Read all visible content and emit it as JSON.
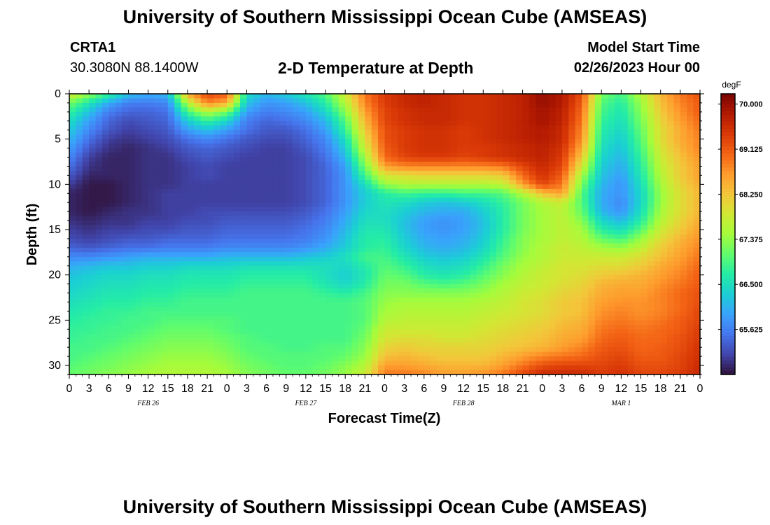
{
  "header": {
    "title": "University of Southern Mississippi Ocean Cube (AMSEAS)",
    "station": "CRTA1",
    "coords": "30.3080N  88.1400W",
    "subtitle": "2-D Temperature at Depth",
    "model_start_label": "Model Start Time",
    "model_start_value": "02/26/2023 Hour 00"
  },
  "footer": {
    "title": "University of Southern Mississippi Ocean Cube (AMSEAS)"
  },
  "chart_data": {
    "type": "heatmap",
    "title": "2-D Temperature at Depth",
    "xlabel": "Forecast Time(Z)",
    "ylabel": "Depth (ft)",
    "units": "degF",
    "x_start_hour": 0,
    "x_end_hour": 96,
    "x_tick_step_hours": 3,
    "x_tick_labels": [
      "0",
      "3",
      "6",
      "9",
      "12",
      "15",
      "18",
      "21",
      "0",
      "3",
      "6",
      "9",
      "12",
      "15",
      "18",
      "21",
      "0",
      "3",
      "6",
      "9",
      "12",
      "15",
      "18",
      "21",
      "0",
      "3",
      "6",
      "9",
      "12",
      "15",
      "18",
      "21",
      "0"
    ],
    "date_labels": [
      {
        "label": "FEB 26",
        "hour": 12
      },
      {
        "label": "FEB 27",
        "hour": 36
      },
      {
        "label": "FEB 28",
        "hour": 60
      },
      {
        "label": "MAR 1",
        "hour": 84
      }
    ],
    "ylim": [
      0,
      31
    ],
    "y_ticks": [
      0,
      5,
      10,
      15,
      20,
      25,
      30
    ],
    "colorbar_ticks": [
      "70.000",
      "69.125",
      "68.250",
      "67.375",
      "66.500",
      "65.625"
    ],
    "colorbar_range": [
      64.75,
      70.2
    ],
    "colorscale": [
      "#30123b",
      "#4145ab",
      "#4675ed",
      "#39a2fc",
      "#1bcfd4",
      "#24eca6",
      "#61fc6c",
      "#a4fc3b",
      "#d1e834",
      "#f3c63a",
      "#fe9b2d",
      "#f36315",
      "#d93806",
      "#b11901",
      "#7a0403"
    ],
    "depth_levels": [
      0,
      1,
      2,
      3,
      4,
      5,
      6,
      7,
      8,
      9,
      10,
      11,
      12,
      13,
      14,
      15,
      16,
      17,
      18,
      19,
      20,
      21,
      22,
      23,
      24,
      25,
      26,
      27,
      28,
      29,
      30,
      31
    ],
    "time_hours": [
      0,
      3,
      6,
      9,
      12,
      15,
      18,
      21,
      24,
      27,
      30,
      33,
      36,
      39,
      42,
      45,
      48,
      51,
      54,
      57,
      60,
      63,
      66,
      69,
      72,
      75,
      78,
      81,
      84,
      87,
      90,
      93,
      96
    ],
    "temperature_degF": [
      [
        67.9,
        67.4,
        66.8,
        66.2,
        66.0,
        66.1,
        68.5,
        69.3,
        69.1,
        66.5,
        66.1,
        66.3,
        66.6,
        67.0,
        67.8,
        68.9,
        69.4,
        69.6,
        69.7,
        69.6,
        69.5,
        69.5,
        69.6,
        69.7,
        70.0,
        69.8,
        69.2,
        67.2,
        66.9,
        67.6,
        68.4,
        68.9,
        69.2
      ],
      [
        67.2,
        66.6,
        66.0,
        65.6,
        65.6,
        65.7,
        67.6,
        68.8,
        68.5,
        66.2,
        65.8,
        65.9,
        66.2,
        66.7,
        67.6,
        68.8,
        69.4,
        69.6,
        69.7,
        69.6,
        69.5,
        69.5,
        69.6,
        69.7,
        70.0,
        69.8,
        69.1,
        67.0,
        66.7,
        67.4,
        68.3,
        68.8,
        69.1
      ],
      [
        66.8,
        66.2,
        65.6,
        65.4,
        65.4,
        65.5,
        66.9,
        67.6,
        67.2,
        65.9,
        65.6,
        65.7,
        65.9,
        66.4,
        67.3,
        68.6,
        69.3,
        69.5,
        69.6,
        69.6,
        69.5,
        69.5,
        69.6,
        69.7,
        69.9,
        69.7,
        69.0,
        66.9,
        66.6,
        67.3,
        68.2,
        68.7,
        69.1
      ],
      [
        66.5,
        65.9,
        65.4,
        65.2,
        65.3,
        65.4,
        66.3,
        66.8,
        66.4,
        65.6,
        65.4,
        65.5,
        65.7,
        66.1,
        67.0,
        68.4,
        69.3,
        69.5,
        69.6,
        69.6,
        69.5,
        69.5,
        69.6,
        69.7,
        69.9,
        69.7,
        68.9,
        66.8,
        66.5,
        67.2,
        68.1,
        68.6,
        69.0
      ],
      [
        66.3,
        65.7,
        65.3,
        65.1,
        65.2,
        65.3,
        65.9,
        66.2,
        65.9,
        65.5,
        65.3,
        65.3,
        65.5,
        65.9,
        66.8,
        68.2,
        69.2,
        69.4,
        69.5,
        69.5,
        69.4,
        69.5,
        69.6,
        69.7,
        69.8,
        69.6,
        68.8,
        66.7,
        66.4,
        67.1,
        68.0,
        68.5,
        68.9
      ],
      [
        66.1,
        65.5,
        65.1,
        65.0,
        65.1,
        65.2,
        65.5,
        65.7,
        65.5,
        65.3,
        65.2,
        65.2,
        65.4,
        65.7,
        66.5,
        68.0,
        69.2,
        69.4,
        69.5,
        69.5,
        69.4,
        69.5,
        69.6,
        69.7,
        69.8,
        69.6,
        68.7,
        66.6,
        66.3,
        67.0,
        68.0,
        68.5,
        68.8
      ],
      [
        65.9,
        65.3,
        65.0,
        64.9,
        65.0,
        65.1,
        65.3,
        65.4,
        65.3,
        65.2,
        65.1,
        65.1,
        65.3,
        65.6,
        66.3,
        67.8,
        69.1,
        69.4,
        69.5,
        69.5,
        69.4,
        69.4,
        69.5,
        69.6,
        69.7,
        69.5,
        68.5,
        66.5,
        66.2,
        66.9,
        67.9,
        68.4,
        68.8
      ],
      [
        65.7,
        65.1,
        64.9,
        64.9,
        65.0,
        65.0,
        65.2,
        65.3,
        65.2,
        65.1,
        65.1,
        65.1,
        65.2,
        65.5,
        66.1,
        67.5,
        69.0,
        69.3,
        69.4,
        69.4,
        69.3,
        69.4,
        69.5,
        69.6,
        69.7,
        69.4,
        68.2,
        66.4,
        66.1,
        66.8,
        67.8,
        68.3,
        68.7
      ],
      [
        65.5,
        65.0,
        64.9,
        64.9,
        65.0,
        65.0,
        65.1,
        65.2,
        65.1,
        65.1,
        65.1,
        65.1,
        65.2,
        65.4,
        65.9,
        67.2,
        68.6,
        68.8,
        68.8,
        68.8,
        68.8,
        68.8,
        68.9,
        69.3,
        69.6,
        69.3,
        67.9,
        66.3,
        66.0,
        66.7,
        67.7,
        68.2,
        68.6
      ],
      [
        65.3,
        64.9,
        64.9,
        64.9,
        65.0,
        65.0,
        65.1,
        65.2,
        65.1,
        65.1,
        65.1,
        65.1,
        65.2,
        65.4,
        65.8,
        66.9,
        67.9,
        68.0,
        68.1,
        68.1,
        68.1,
        68.1,
        68.2,
        69.0,
        69.5,
        69.1,
        67.5,
        66.2,
        65.9,
        66.6,
        67.6,
        68.2,
        68.6
      ],
      [
        65.1,
        64.8,
        64.8,
        64.9,
        65.0,
        65.0,
        65.1,
        65.1,
        65.1,
        65.1,
        65.1,
        65.1,
        65.2,
        65.4,
        65.8,
        66.5,
        67.4,
        67.6,
        67.6,
        67.6,
        67.6,
        67.6,
        67.7,
        68.6,
        69.3,
        68.9,
        67.2,
        66.1,
        65.8,
        66.5,
        67.5,
        68.1,
        68.5
      ],
      [
        64.9,
        64.8,
        64.8,
        64.9,
        65.0,
        65.1,
        65.1,
        65.1,
        65.1,
        65.1,
        65.1,
        65.1,
        65.2,
        65.4,
        65.8,
        66.3,
        66.7,
        66.9,
        66.8,
        66.8,
        66.9,
        66.9,
        67.0,
        67.6,
        68.3,
        68.6,
        67.0,
        66.0,
        65.8,
        66.4,
        67.4,
        68.0,
        68.4
      ],
      [
        64.9,
        64.8,
        64.8,
        64.9,
        65.0,
        65.1,
        65.1,
        65.1,
        65.1,
        65.1,
        65.1,
        65.1,
        65.2,
        65.4,
        65.8,
        66.3,
        66.6,
        66.5,
        66.3,
        66.2,
        66.3,
        66.5,
        66.8,
        67.2,
        67.6,
        67.8,
        67.0,
        66.0,
        65.7,
        66.4,
        67.4,
        68.0,
        68.4
      ],
      [
        64.9,
        64.8,
        64.9,
        65.0,
        65.0,
        65.1,
        65.1,
        65.2,
        65.2,
        65.2,
        65.2,
        65.2,
        65.3,
        65.5,
        65.9,
        66.4,
        66.5,
        66.3,
        66.1,
        66.0,
        66.0,
        66.3,
        66.7,
        67.2,
        67.5,
        67.7,
        67.1,
        66.1,
        65.8,
        66.5,
        67.5,
        68.0,
        68.4
      ],
      [
        65.0,
        64.9,
        65.0,
        65.0,
        65.1,
        65.1,
        65.2,
        65.2,
        65.3,
        65.3,
        65.3,
        65.3,
        65.4,
        65.6,
        66.0,
        66.5,
        66.5,
        66.2,
        65.9,
        65.8,
        65.9,
        66.2,
        66.7,
        67.2,
        67.5,
        67.7,
        67.3,
        66.4,
        66.1,
        66.7,
        67.6,
        68.1,
        68.5
      ],
      [
        65.1,
        65.0,
        65.1,
        65.1,
        65.2,
        65.2,
        65.3,
        65.3,
        65.4,
        65.4,
        65.4,
        65.4,
        65.5,
        65.7,
        66.1,
        66.6,
        66.6,
        66.2,
        65.9,
        65.8,
        65.9,
        66.2,
        66.7,
        67.2,
        67.5,
        67.7,
        67.5,
        66.7,
        66.5,
        67.0,
        67.8,
        68.2,
        68.6
      ],
      [
        65.2,
        65.1,
        65.2,
        65.3,
        65.3,
        65.4,
        65.4,
        65.4,
        65.5,
        65.5,
        65.5,
        65.5,
        65.6,
        65.8,
        66.2,
        66.7,
        66.7,
        66.3,
        66.0,
        65.9,
        66.0,
        66.3,
        66.8,
        67.3,
        67.5,
        67.7,
        67.6,
        67.1,
        66.9,
        67.4,
        68.0,
        68.4,
        68.7
      ],
      [
        65.4,
        65.3,
        65.4,
        65.5,
        65.5,
        65.6,
        65.6,
        65.6,
        65.7,
        65.7,
        65.7,
        65.7,
        65.8,
        66.0,
        66.3,
        66.7,
        66.8,
        66.4,
        66.1,
        66.0,
        66.1,
        66.4,
        66.9,
        67.3,
        67.6,
        67.8,
        67.7,
        67.5,
        67.4,
        67.7,
        68.2,
        68.5,
        68.8
      ],
      [
        65.7,
        65.7,
        65.8,
        65.9,
        66.0,
        66.0,
        66.0,
        66.0,
        66.1,
        66.1,
        66.1,
        66.1,
        66.2,
        66.3,
        66.5,
        66.9,
        66.9,
        66.6,
        66.3,
        66.2,
        66.3,
        66.6,
        67.0,
        67.4,
        67.6,
        67.8,
        67.8,
        67.8,
        67.8,
        68.0,
        68.3,
        68.6,
        68.9
      ],
      [
        66.0,
        66.1,
        66.2,
        66.2,
        66.3,
        66.3,
        66.4,
        66.4,
        66.4,
        66.5,
        66.5,
        66.5,
        66.5,
        66.5,
        66.4,
        66.7,
        67.0,
        66.8,
        66.5,
        66.4,
        66.5,
        66.8,
        67.2,
        67.5,
        67.7,
        67.9,
        67.9,
        68.0,
        68.0,
        68.2,
        68.5,
        68.7,
        69.0
      ],
      [
        66.2,
        66.3,
        66.4,
        66.4,
        66.5,
        66.5,
        66.6,
        66.6,
        66.6,
        66.7,
        66.7,
        66.7,
        66.7,
        66.5,
        66.3,
        66.6,
        67.1,
        67.0,
        66.7,
        66.6,
        66.7,
        67.0,
        67.3,
        67.6,
        67.8,
        67.9,
        68.0,
        68.2,
        68.3,
        68.4,
        68.6,
        68.8,
        69.1
      ],
      [
        66.3,
        66.4,
        66.5,
        66.5,
        66.6,
        66.6,
        66.7,
        66.7,
        66.7,
        66.8,
        66.8,
        66.8,
        66.8,
        66.6,
        66.4,
        66.7,
        67.2,
        67.2,
        67.0,
        66.9,
        67.0,
        67.2,
        67.5,
        67.7,
        67.8,
        68.0,
        68.1,
        68.4,
        68.5,
        68.5,
        68.7,
        68.9,
        69.1
      ],
      [
        66.4,
        66.5,
        66.6,
        66.6,
        66.7,
        66.7,
        66.8,
        66.8,
        66.8,
        66.9,
        66.9,
        66.9,
        66.9,
        66.8,
        66.7,
        66.9,
        67.3,
        67.3,
        67.3,
        67.3,
        67.3,
        67.4,
        67.6,
        67.8,
        67.9,
        68.1,
        68.2,
        68.5,
        68.6,
        68.6,
        68.8,
        69.0,
        69.2
      ],
      [
        66.5,
        66.6,
        66.7,
        66.7,
        66.8,
        66.8,
        66.9,
        66.9,
        66.9,
        66.9,
        66.9,
        66.9,
        66.9,
        66.9,
        66.9,
        67.0,
        67.4,
        67.5,
        67.5,
        67.5,
        67.5,
        67.6,
        67.7,
        67.9,
        68.0,
        68.2,
        68.3,
        68.6,
        68.7,
        68.7,
        68.8,
        69.0,
        69.2
      ],
      [
        66.6,
        66.7,
        66.8,
        66.8,
        66.9,
        66.9,
        66.9,
        66.9,
        66.9,
        66.9,
        66.9,
        66.9,
        66.9,
        66.9,
        66.9,
        67.0,
        67.5,
        67.6,
        67.6,
        67.6,
        67.6,
        67.7,
        67.8,
        67.9,
        68.0,
        68.2,
        68.3,
        68.7,
        68.8,
        68.7,
        68.8,
        69.0,
        69.3
      ],
      [
        66.7,
        66.8,
        66.8,
        66.9,
        66.9,
        67.0,
        67.0,
        67.0,
        67.0,
        66.9,
        66.9,
        66.9,
        66.9,
        66.9,
        66.9,
        67.0,
        67.6,
        67.7,
        67.7,
        67.7,
        67.7,
        67.8,
        67.9,
        68.0,
        68.1,
        68.3,
        68.4,
        68.8,
        68.9,
        68.8,
        68.9,
        69.1,
        69.3
      ],
      [
        66.8,
        66.8,
        66.9,
        66.9,
        67.0,
        67.1,
        67.1,
        67.1,
        67.0,
        66.9,
        66.9,
        66.9,
        66.9,
        66.9,
        66.9,
        67.1,
        67.8,
        67.8,
        67.8,
        67.8,
        67.8,
        67.9,
        68.0,
        68.1,
        68.2,
        68.4,
        68.5,
        68.9,
        69.0,
        68.9,
        69.0,
        69.1,
        69.4
      ],
      [
        66.8,
        66.9,
        66.9,
        67.0,
        67.1,
        67.2,
        67.2,
        67.2,
        67.1,
        67.0,
        66.9,
        66.9,
        66.9,
        66.9,
        66.9,
        67.2,
        67.9,
        68.0,
        68.0,
        67.9,
        67.9,
        68.0,
        68.1,
        68.2,
        68.3,
        68.5,
        68.6,
        69.0,
        69.1,
        69.0,
        69.0,
        69.2,
        69.4
      ],
      [
        66.9,
        66.9,
        67.0,
        67.1,
        67.2,
        67.3,
        67.3,
        67.3,
        67.2,
        67.0,
        67.0,
        66.9,
        66.9,
        67.0,
        67.0,
        67.3,
        68.1,
        68.2,
        68.1,
        68.1,
        68.1,
        68.1,
        68.2,
        68.3,
        68.4,
        68.6,
        68.8,
        69.1,
        69.2,
        69.0,
        69.1,
        69.2,
        69.5
      ],
      [
        66.9,
        67.0,
        67.1,
        67.2,
        67.3,
        67.4,
        67.4,
        67.4,
        67.3,
        67.1,
        67.0,
        67.0,
        67.0,
        67.0,
        67.1,
        67.4,
        68.3,
        68.4,
        68.3,
        68.2,
        68.2,
        68.2,
        68.4,
        68.6,
        68.8,
        68.9,
        69.0,
        69.2,
        69.3,
        69.1,
        69.1,
        69.3,
        69.5
      ],
      [
        67.0,
        67.1,
        67.2,
        67.3,
        67.4,
        67.5,
        67.5,
        67.5,
        67.4,
        67.2,
        67.1,
        67.0,
        67.0,
        67.1,
        67.3,
        67.6,
        68.6,
        68.6,
        68.5,
        68.4,
        68.4,
        68.4,
        68.6,
        68.9,
        69.2,
        69.3,
        69.3,
        69.3,
        69.4,
        69.2,
        69.2,
        69.3,
        69.6
      ],
      [
        67.1,
        67.2,
        67.3,
        67.4,
        67.5,
        67.6,
        67.6,
        67.6,
        67.5,
        67.3,
        67.2,
        67.1,
        67.1,
        67.2,
        67.4,
        67.8,
        68.9,
        68.9,
        68.8,
        68.6,
        68.6,
        68.7,
        68.9,
        69.3,
        69.6,
        69.6,
        69.6,
        69.4,
        69.5,
        69.3,
        69.3,
        69.4,
        69.6
      ]
    ]
  }
}
